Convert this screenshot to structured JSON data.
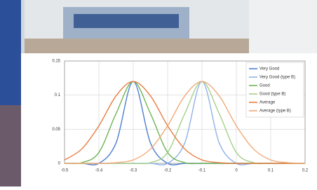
{
  "chart_data": {
    "type": "line",
    "x": [
      -0.5,
      -0.45,
      -0.4,
      -0.35,
      -0.3,
      -0.25,
      -0.2,
      -0.15,
      -0.1,
      -0.05,
      0,
      0.05,
      0.1,
      0.15,
      0.2
    ],
    "series": [
      {
        "name": "Very Good",
        "color": "#4f7fcf",
        "values": [
          0,
          0,
          0,
          0.03,
          0.12,
          0.03,
          0,
          0,
          0,
          0,
          0,
          0,
          0,
          0,
          0
        ]
      },
      {
        "name": "Very Good (type B)",
        "color": "#8fb3e8",
        "values": [
          0,
          0,
          0,
          0,
          0,
          0,
          0,
          0.03,
          0.12,
          0.03,
          0,
          0,
          0,
          0,
          0
        ]
      },
      {
        "name": "Good",
        "color": "#6fb552",
        "values": [
          0,
          0.001,
          0.016,
          0.073,
          0.12,
          0.073,
          0.016,
          0.001,
          0,
          0,
          0,
          0,
          0,
          0,
          0
        ]
      },
      {
        "name": "Good (type B)",
        "color": "#a6d08a",
        "values": [
          0,
          0,
          0,
          0,
          0,
          0.001,
          0.016,
          0.073,
          0.12,
          0.073,
          0.016,
          0.001,
          0,
          0,
          0
        ]
      },
      {
        "name": "Average",
        "color": "#e77c3e",
        "values": [
          0.005,
          0.021,
          0.055,
          0.099,
          0.12,
          0.099,
          0.055,
          0.021,
          0.005,
          0.001,
          0,
          0,
          0,
          0,
          0
        ]
      },
      {
        "name": "Average (type B)",
        "color": "#f2a978",
        "values": [
          0,
          0,
          0,
          0.001,
          0.005,
          0.021,
          0.055,
          0.099,
          0.12,
          0.099,
          0.055,
          0.021,
          0.005,
          0.001,
          0
        ]
      }
    ],
    "xlim": [
      -0.5,
      0.2
    ],
    "xticks": [
      -0.5,
      -0.4,
      -0.3,
      -0.2,
      -0.1,
      0,
      0.1,
      0.2
    ],
    "ylim": [
      0,
      0.15
    ],
    "yticks": [
      0,
      0.05,
      0.1,
      0.15
    ],
    "grid": true,
    "legend": "upper-right"
  }
}
